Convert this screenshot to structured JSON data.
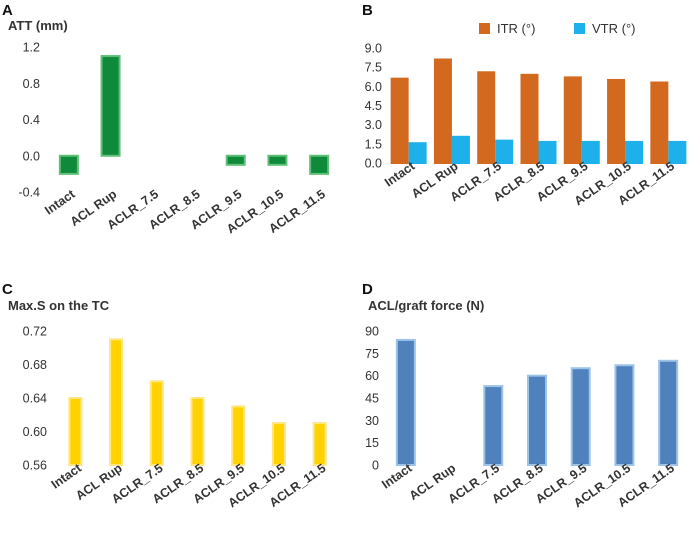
{
  "panels": [
    {
      "id": "A",
      "panel_label": "A",
      "chart_data": {
        "type": "bar",
        "title": "ATT (mm)",
        "categories": [
          "Intact",
          "ACL Rup",
          "ACLR_7.5",
          "ACLR_8.5",
          "ACLR_9.5",
          "ACLR_10.5",
          "ACLR_11.5"
        ],
        "series": [
          {
            "name": "ATT",
            "values": [
              -0.2,
              1.1,
              0,
              0,
              -0.1,
              -0.1,
              -0.2
            ],
            "color": "#0f8a3a",
            "edge": "#5fbf76"
          }
        ],
        "yticks": [
          "-0.4",
          "0.0",
          "0.4",
          "0.8",
          "1.2"
        ],
        "ylim": [
          -0.4,
          1.2
        ],
        "xlabel": "",
        "ylabel": ""
      }
    },
    {
      "id": "B",
      "panel_label": "B",
      "chart_data": {
        "type": "bar",
        "title": "",
        "categories": [
          "Intact",
          "ACL Rup",
          "ACLR_7.5",
          "ACLR_8.5",
          "ACLR_9.5",
          "ACLR_10.5",
          "ACLR_11.5"
        ],
        "series": [
          {
            "name": "ITR (°)",
            "values": [
              6.6,
              8.1,
              7.1,
              6.9,
              6.7,
              6.5,
              6.3
            ],
            "color": "#d2691e",
            "edge": "#d2691e"
          },
          {
            "name": "VTR (°)",
            "values": [
              1.55,
              2.05,
              1.75,
              1.65,
              1.65,
              1.65,
              1.65
            ],
            "color": "#1eb0ea",
            "edge": "#1eb0ea"
          }
        ],
        "yticks": [
          "0.0",
          "1.5",
          "3.0",
          "4.5",
          "6.0",
          "7.5",
          "9.0"
        ],
        "ylim": [
          0,
          9
        ],
        "legend": "top",
        "xlabel": "",
        "ylabel": ""
      }
    },
    {
      "id": "C",
      "panel_label": "C",
      "chart_data": {
        "type": "bar",
        "title": "Max.S on the TC",
        "categories": [
          "Intact",
          "ACL Rup",
          "ACLR_7.5",
          "ACLR_8.5",
          "ACLR_9.5",
          "ACLR_10.5",
          "ACLR_11.5"
        ],
        "series": [
          {
            "name": "Max.S",
            "values": [
              0.64,
              0.71,
              0.66,
              0.64,
              0.63,
              0.61,
              0.61
            ],
            "color": "#ffd200",
            "edge": "#ffe680"
          }
        ],
        "yticks": [
          "0.56",
          "0.60",
          "0.64",
          "0.68",
          "0.72"
        ],
        "ylim": [
          0.56,
          0.72
        ],
        "xlabel": "",
        "ylabel": ""
      }
    },
    {
      "id": "D",
      "panel_label": "D",
      "chart_data": {
        "type": "bar",
        "title": "ACL/graft force (N)",
        "categories": [
          "Intact",
          "ACL Rup",
          "ACLR_7.5",
          "ACLR_8.5",
          "ACLR_9.5",
          "ACLR_10.5",
          "ACLR_11.5"
        ],
        "series": [
          {
            "name": "Force",
            "values": [
              84,
              0,
              53,
              60,
              65,
              67,
              70
            ],
            "color": "#4f81bd",
            "edge": "#9dc3e6"
          }
        ],
        "yticks": [
          "0",
          "15",
          "30",
          "45",
          "60",
          "75",
          "90"
        ],
        "ylim": [
          0,
          90
        ],
        "xlabel": "",
        "ylabel": ""
      }
    }
  ]
}
